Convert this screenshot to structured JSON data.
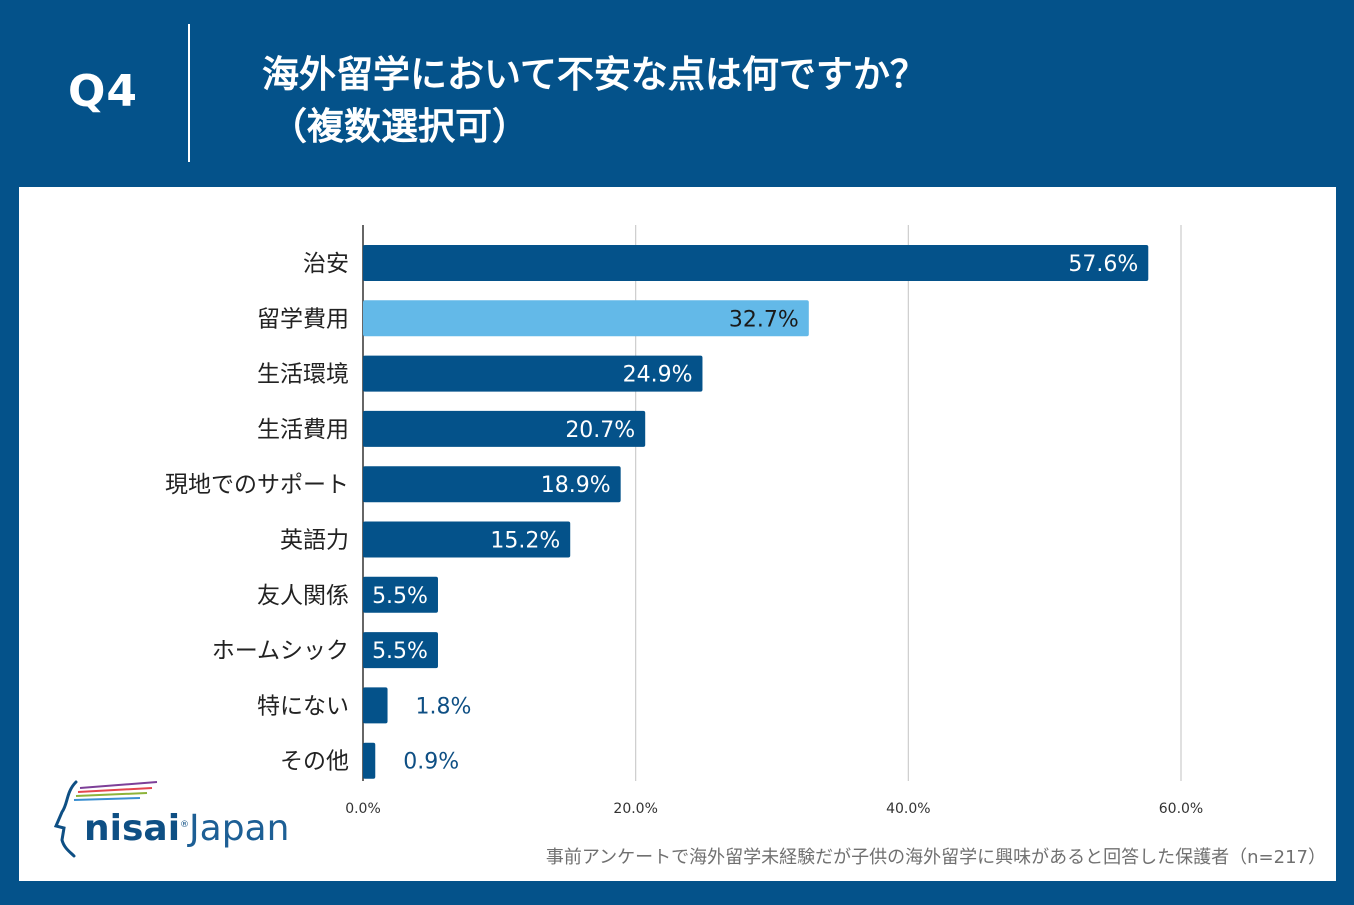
{
  "header": {
    "q_label": "Q4",
    "title_line1": "海外留学において不安な点は何ですか？",
    "title_line2": "（複数選択可）"
  },
  "logo": {
    "brand_bold": "nisai",
    "brand_mark": "®",
    "brand_light": "Japan"
  },
  "footnote": "事前アンケートで海外留学未経験だが子供の海外留学に興味があると回答した保護者（n=217）",
  "colors": {
    "background": "#04528a",
    "bar_primary": "#04528a",
    "bar_highlight": "#63b9e8",
    "label_outside": "#0e4f84",
    "grid": "#cccccc"
  },
  "chart_data": {
    "type": "bar",
    "orientation": "horizontal",
    "title": "海外留学において不安な点は何ですか？（複数選択可）",
    "categories": [
      "治安",
      "留学費用",
      "生活環境",
      "生活費用",
      "現地でのサポート",
      "英語力",
      "友人関係",
      "ホームシック",
      "特にない",
      "その他"
    ],
    "values": [
      57.6,
      32.7,
      24.9,
      20.7,
      18.9,
      15.2,
      5.5,
      5.5,
      1.8,
      0.9
    ],
    "value_labels": [
      "57.6%",
      "32.7%",
      "24.9%",
      "20.7%",
      "18.9%",
      "15.2%",
      "5.5%",
      "5.5%",
      "1.8%",
      "0.9%"
    ],
    "highlight_index": 1,
    "xlim": [
      0,
      60
    ],
    "xticks": [
      0,
      20,
      40,
      60
    ],
    "xtick_labels": [
      "0.0%",
      "20.0%",
      "40.0%",
      "60.0%"
    ],
    "grid": true,
    "xlabel": "",
    "ylabel": ""
  }
}
